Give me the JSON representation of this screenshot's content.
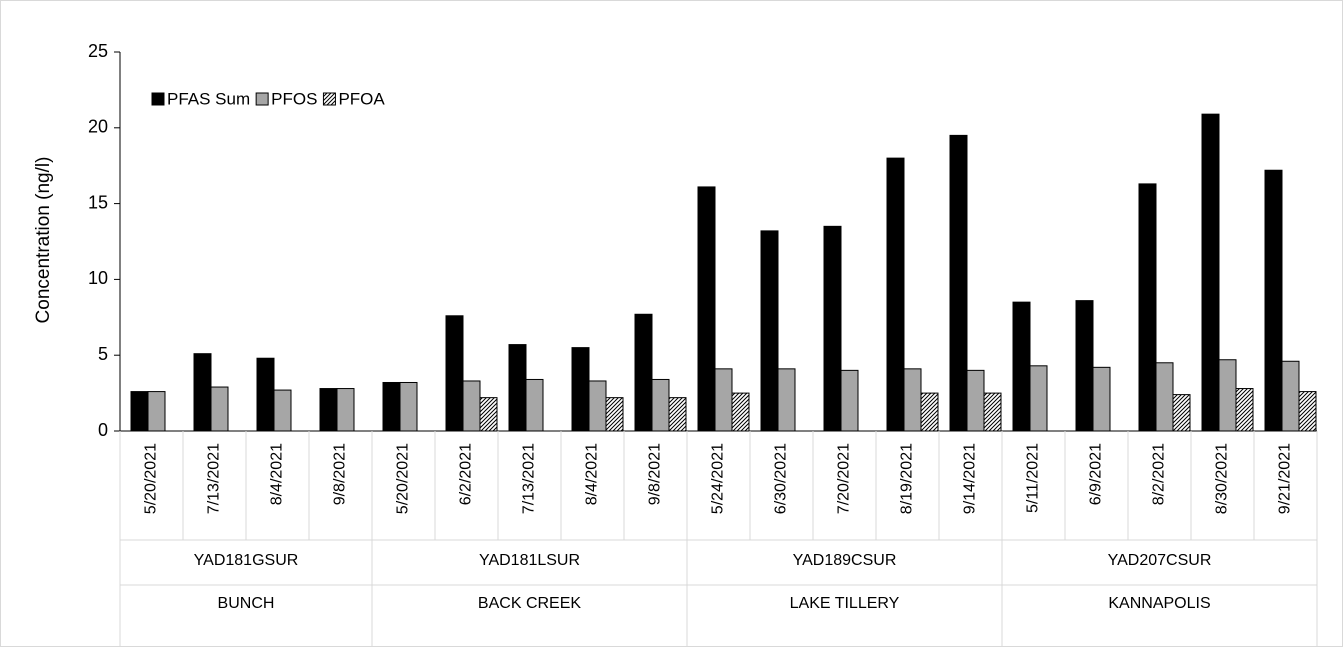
{
  "chart_data": {
    "type": "bar",
    "y_label": "Concentration (ng/l)",
    "groups": [
      {
        "code": "YAD181GSUR",
        "site": "BUNCH",
        "categories": [
          "5/20/2021",
          "7/13/2021",
          "8/4/2021",
          "9/8/2021"
        ]
      },
      {
        "code": "YAD181LSUR",
        "site": "BACK CREEK",
        "categories": [
          "5/20/2021",
          "6/2/2021",
          "7/13/2021",
          "8/4/2021",
          "9/8/2021"
        ]
      },
      {
        "code": "YAD189CSUR",
        "site": "LAKE TILLERY",
        "categories": [
          "5/24/2021",
          "6/30/2021",
          "7/20/2021",
          "8/19/2021",
          "9/14/2021"
        ]
      },
      {
        "code": "YAD207CSUR",
        "site": "KANNAPOLIS",
        "categories": [
          "5/11/2021",
          "6/9/2021",
          "8/2/2021",
          "8/30/2021",
          "9/21/2021"
        ]
      }
    ],
    "series": [
      {
        "name": "PFAS Sum",
        "color": "#000000",
        "fill": "solid",
        "values": [
          2.6,
          5.1,
          4.8,
          2.8,
          3.2,
          7.6,
          5.7,
          5.5,
          7.7,
          16.1,
          13.2,
          13.5,
          18.0,
          19.5,
          8.5,
          8.6,
          16.3,
          20.9,
          17.2
        ]
      },
      {
        "name": "PFOS",
        "color": "#a6a6a6",
        "fill": "solid",
        "values": [
          2.6,
          2.9,
          2.7,
          2.8,
          3.2,
          3.3,
          3.4,
          3.3,
          3.4,
          4.1,
          4.1,
          4.0,
          4.1,
          4.0,
          4.3,
          4.2,
          4.5,
          4.7,
          4.6
        ]
      },
      {
        "name": "PFOA",
        "color": "#000000",
        "fill": "hatch",
        "values": [
          null,
          null,
          null,
          null,
          null,
          2.2,
          null,
          2.2,
          2.2,
          2.5,
          null,
          null,
          2.5,
          2.5,
          null,
          null,
          2.4,
          2.8,
          2.6
        ]
      }
    ],
    "ylim": [
      0,
      25
    ],
    "yticks": [
      0,
      5,
      10,
      15,
      20,
      25
    ],
    "legend": "top-left"
  }
}
